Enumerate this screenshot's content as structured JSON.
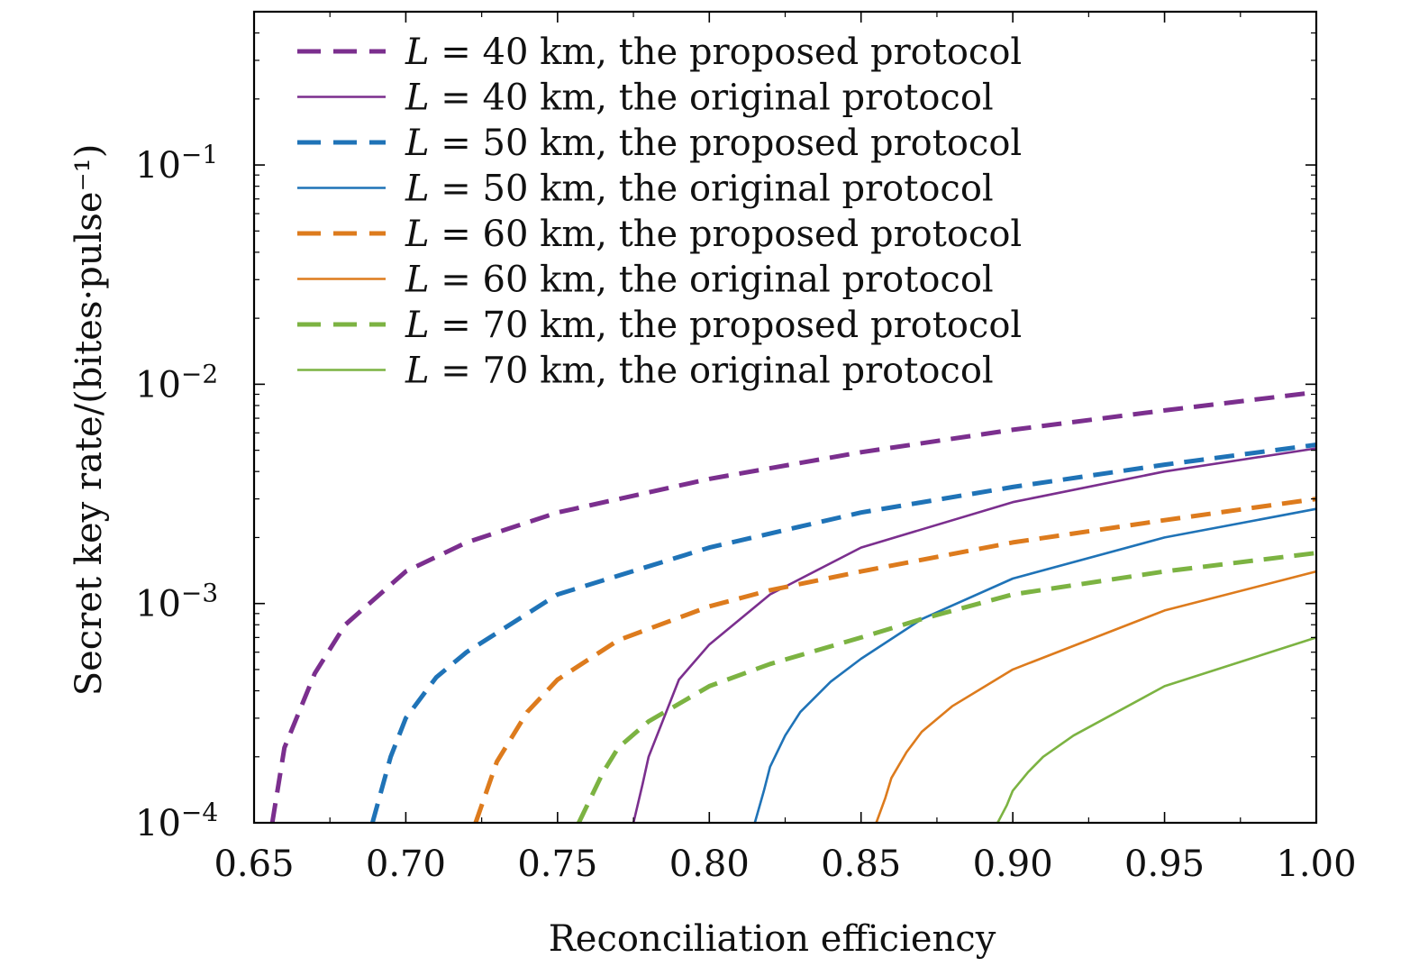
{
  "chart_data": {
    "type": "line",
    "xlabel": "Reconciliation efficiency",
    "ylabel": "Secret key rate/(bites·pulse⁻¹)",
    "xlim": [
      0.65,
      1.0
    ],
    "ylim": [
      0.0001,
      0.5
    ],
    "yscale": "log",
    "x_ticks": [
      0.65,
      0.7,
      0.75,
      0.8,
      0.85,
      0.9,
      0.95,
      1.0
    ],
    "x_tick_labels": [
      "0.65",
      "0.70",
      "0.75",
      "0.80",
      "0.85",
      "0.90",
      "0.95",
      "1.00"
    ],
    "y_ticks": [
      {
        "value": 0.1,
        "base": "10",
        "exp": "−1"
      },
      {
        "value": 0.01,
        "base": "10",
        "exp": "−2"
      },
      {
        "value": 0.001,
        "base": "10",
        "exp": "−3"
      },
      {
        "value": 0.0001,
        "base": "10",
        "exp": "−4"
      }
    ],
    "legend_position": "top-left",
    "series": [
      {
        "name": "L = 40 km, the proposed protocol",
        "var": "L",
        "rest": " = 40 km, the proposed protocol",
        "color": "#7b2f8e",
        "dash": true,
        "x": [
          0.656,
          0.66,
          0.67,
          0.68,
          0.7,
          0.72,
          0.75,
          0.8,
          0.85,
          0.9,
          0.95,
          1.0
        ],
        "y": [
          0.0001,
          0.00022,
          0.00048,
          0.0008,
          0.0014,
          0.0019,
          0.0026,
          0.0037,
          0.0049,
          0.0062,
          0.0076,
          0.0092
        ]
      },
      {
        "name": "L = 40 km, the original protocol",
        "var": "L",
        "rest": " = 40 km, the original protocol",
        "color": "#7b2f8e",
        "dash": false,
        "x": [
          0.775,
          0.778,
          0.78,
          0.785,
          0.79,
          0.8,
          0.82,
          0.85,
          0.9,
          0.95,
          1.0
        ],
        "y": [
          0.0001,
          0.00015,
          0.0002,
          0.0003,
          0.00045,
          0.00065,
          0.0011,
          0.0018,
          0.0029,
          0.004,
          0.0051
        ]
      },
      {
        "name": "L = 50 km, the proposed protocol",
        "var": "L",
        "rest": " = 50 km, the proposed protocol",
        "color": "#1f73b7",
        "dash": true,
        "x": [
          0.689,
          0.695,
          0.7,
          0.71,
          0.72,
          0.75,
          0.8,
          0.85,
          0.9,
          0.95,
          1.0
        ],
        "y": [
          0.0001,
          0.0002,
          0.0003,
          0.00046,
          0.0006,
          0.0011,
          0.0018,
          0.0026,
          0.0034,
          0.0043,
          0.0053
        ]
      },
      {
        "name": "L = 50 km, the original protocol",
        "var": "L",
        "rest": " = 50 km, the original protocol",
        "color": "#1f73b7",
        "dash": false,
        "x": [
          0.815,
          0.818,
          0.82,
          0.825,
          0.83,
          0.84,
          0.85,
          0.87,
          0.9,
          0.95,
          1.0
        ],
        "y": [
          0.0001,
          0.00014,
          0.00018,
          0.00025,
          0.00032,
          0.00044,
          0.00056,
          0.00085,
          0.0013,
          0.002,
          0.0027
        ]
      },
      {
        "name": "L = 60 km, the proposed protocol",
        "var": "L",
        "rest": " = 60 km, the proposed protocol",
        "color": "#dd7b1d",
        "dash": true,
        "x": [
          0.723,
          0.73,
          0.74,
          0.75,
          0.77,
          0.8,
          0.82,
          0.85,
          0.9,
          0.95,
          1.0
        ],
        "y": [
          0.0001,
          0.00019,
          0.00032,
          0.00045,
          0.00068,
          0.00097,
          0.00115,
          0.0014,
          0.0019,
          0.0024,
          0.003
        ]
      },
      {
        "name": "L = 60 km, the original protocol",
        "var": "L",
        "rest": " = 60 km, the original protocol",
        "color": "#dd7b1d",
        "dash": false,
        "x": [
          0.855,
          0.858,
          0.86,
          0.865,
          0.87,
          0.88,
          0.9,
          0.95,
          1.0
        ],
        "y": [
          0.0001,
          0.00013,
          0.00016,
          0.00021,
          0.00026,
          0.00034,
          0.0005,
          0.00093,
          0.0014
        ]
      },
      {
        "name": "L = 70 km, the proposed protocol",
        "var": "L",
        "rest": " = 70 km, the proposed protocol",
        "color": "#7cb342",
        "dash": true,
        "x": [
          0.757,
          0.765,
          0.77,
          0.78,
          0.8,
          0.82,
          0.85,
          0.87,
          0.9,
          0.95,
          1.0
        ],
        "y": [
          0.0001,
          0.00017,
          0.00022,
          0.00029,
          0.00042,
          0.00053,
          0.0007,
          0.00085,
          0.0011,
          0.0014,
          0.0017
        ]
      },
      {
        "name": "L = 70 km, the original protocol",
        "var": "L",
        "rest": " = 70 km, the original protocol",
        "color": "#7cb342",
        "dash": false,
        "x": [
          0.895,
          0.898,
          0.9,
          0.905,
          0.91,
          0.92,
          0.95,
          1.0
        ],
        "y": [
          0.0001,
          0.00012,
          0.00014,
          0.00017,
          0.0002,
          0.00025,
          0.00042,
          0.0007
        ]
      }
    ]
  }
}
